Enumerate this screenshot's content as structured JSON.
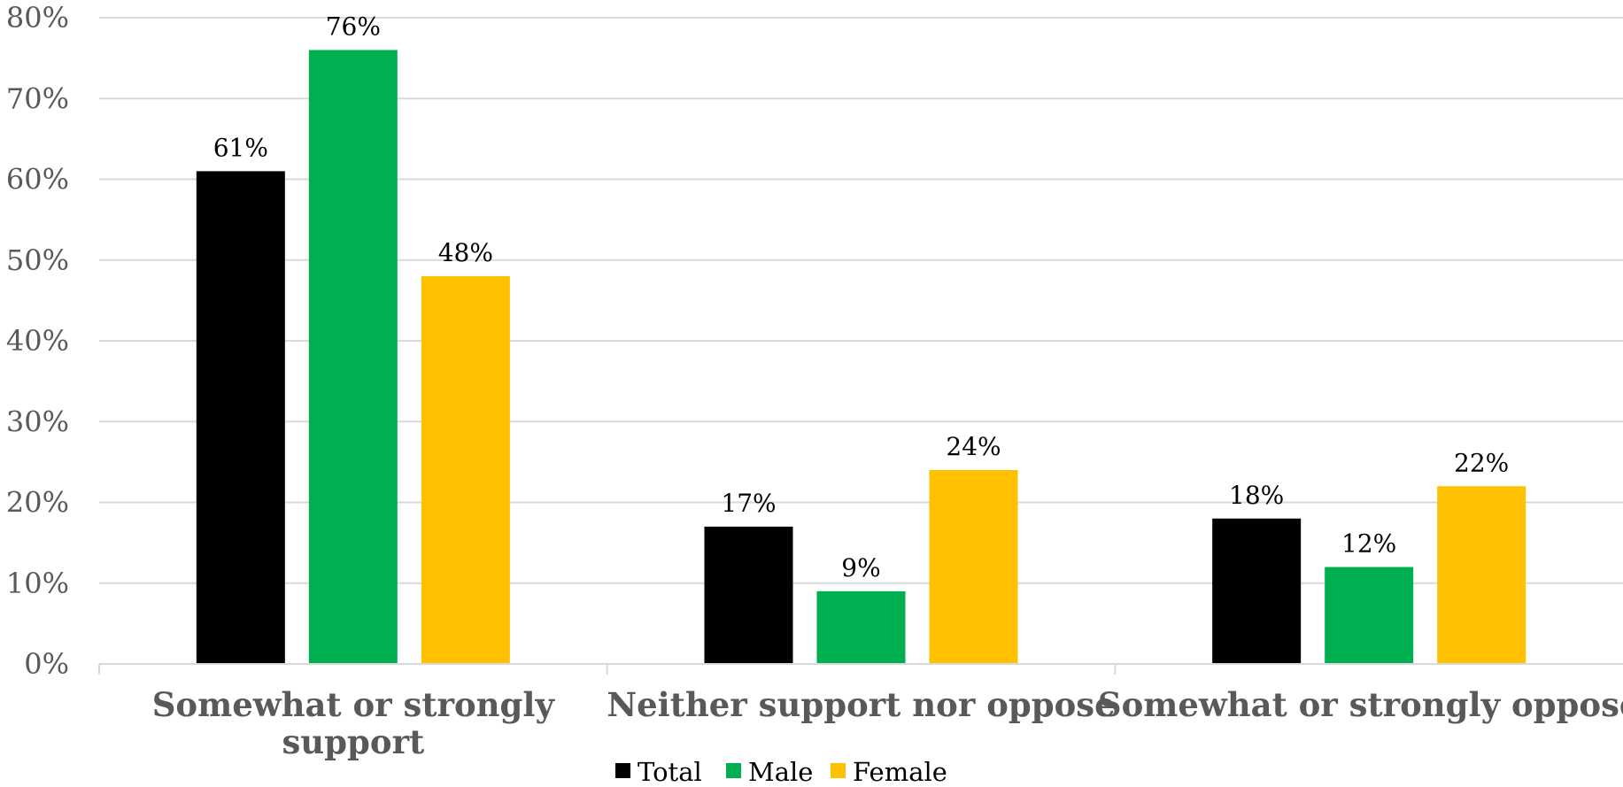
{
  "chart_data": {
    "type": "bar",
    "title": "",
    "xlabel": "",
    "ylabel": "",
    "ylim": [
      0,
      80
    ],
    "yticks": [
      0,
      10,
      20,
      30,
      40,
      50,
      60,
      70,
      80
    ],
    "ytick_labels": [
      "0%",
      "10%",
      "20%",
      "30%",
      "40%",
      "50%",
      "60%",
      "70%",
      "80%"
    ],
    "categories": [
      [
        "Somewhat or strongly",
        "support"
      ],
      [
        "Neither support nor oppose"
      ],
      [
        "Somewhat or strongly oppose"
      ]
    ],
    "series": [
      {
        "name": "Total",
        "color": "#000000",
        "values": [
          61,
          17,
          18
        ],
        "labels": [
          "61%",
          "17%",
          "18%"
        ]
      },
      {
        "name": "Male",
        "color": "#00B050",
        "values": [
          76,
          9,
          12
        ],
        "labels": [
          "76%",
          "9%",
          "12%"
        ]
      },
      {
        "name": "Female",
        "color": "#FFC000",
        "values": [
          48,
          24,
          22
        ],
        "labels": [
          "48%",
          "24%",
          "22%"
        ]
      }
    ],
    "grid": true,
    "legend": "bottom",
    "gridline_color": "#D9D9D9",
    "axis_color": "#D9D9D9"
  }
}
